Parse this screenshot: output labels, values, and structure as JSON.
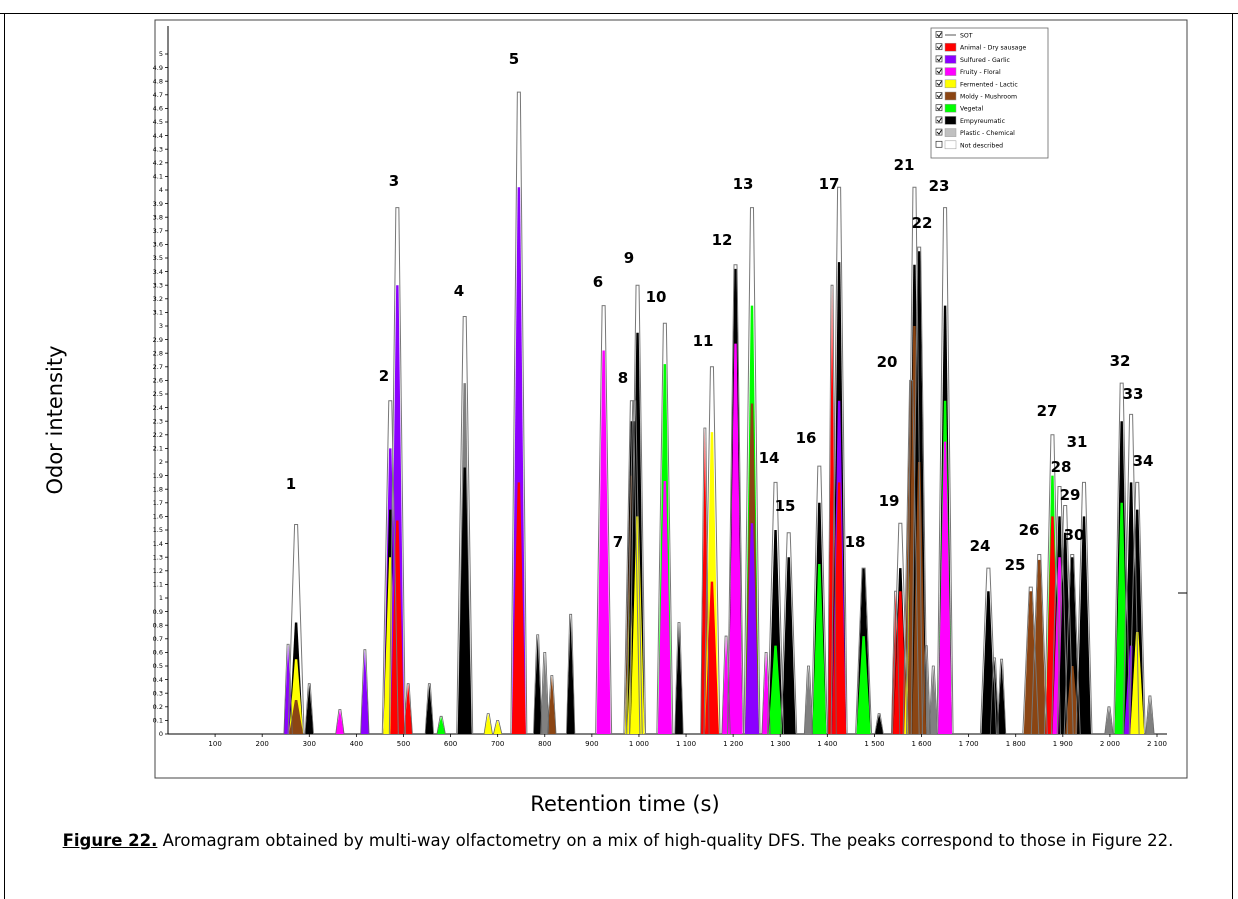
{
  "chart_data": {
    "type": "area",
    "xlabel": "Retention time (s)",
    "ylabel": "Odor intensity",
    "xlim": [
      0,
      2100
    ],
    "ylim": [
      0,
      5
    ],
    "x_ticks": [
      100,
      200,
      300,
      400,
      500,
      600,
      700,
      800,
      900,
      1000,
      1100,
      1200,
      1300,
      1400,
      1500,
      1600,
      1700,
      1800,
      1900,
      2000,
      2100
    ],
    "x_tick_labels": [
      "100",
      "200",
      "300",
      "400",
      "500",
      "600",
      "700",
      "800",
      "900",
      "1 000",
      "1 100",
      "1 200",
      "1 300",
      "1 400",
      "1 500",
      "1 600",
      "1 700",
      "1 800",
      "1 900",
      "2 000",
      "2 100"
    ],
    "y_ticks": [
      0,
      0.1,
      0.2,
      0.3,
      0.4,
      0.5,
      0.6,
      0.7,
      0.8,
      0.9,
      1,
      1.1,
      1.2,
      1.3,
      1.4,
      1.5,
      1.6,
      1.7,
      1.8,
      1.9,
      2,
      2.1,
      2.2,
      2.3,
      2.4,
      2.5,
      2.6,
      2.7,
      2.8,
      2.9,
      3,
      3.1,
      3.2,
      3.3,
      3.4,
      3.5,
      3.6,
      3.7,
      3.8,
      3.9,
      4,
      4.1,
      4.2,
      4.3,
      4.4,
      4.5,
      4.6,
      4.7,
      4.8,
      4.9,
      5
    ],
    "legend_position": "top-right",
    "legend": [
      {
        "name": "SOT",
        "color": "#555555",
        "style": "line"
      },
      {
        "name": "Animal - Dry sausage",
        "color": "#ff0000"
      },
      {
        "name": "Sulfured - Garlic",
        "color": "#8b00ff"
      },
      {
        "name": "Fruity - Floral",
        "color": "#ff00ff"
      },
      {
        "name": "Fermented - Lactic",
        "color": "#ffff00"
      },
      {
        "name": "Moldy - Mushroom",
        "color": "#8b4513"
      },
      {
        "name": "Vegetal",
        "color": "#00ff00"
      },
      {
        "name": "Empyreumatic",
        "color": "#000000"
      },
      {
        "name": "Plastic - Chemical",
        "color": "#c0c0c0"
      },
      {
        "name": "Not described",
        "color": "#ffffff"
      }
    ],
    "peaks": [
      {
        "label": "1",
        "x": 272,
        "sot": 1.54,
        "segments": [
          [
            "#8b4513",
            0.25
          ],
          [
            "#ffff00",
            0.55
          ],
          [
            "#000000",
            0.82
          ]
        ]
      },
      {
        "label": "2",
        "x": 472,
        "sot": 2.45,
        "segments": [
          [
            "#ffff00",
            1.3
          ],
          [
            "#000000",
            1.65
          ],
          [
            "#8b00ff",
            2.1
          ]
        ]
      },
      {
        "label": "3",
        "x": 487,
        "sot": 3.87,
        "segments": [
          [
            "#ff0000",
            1.57
          ],
          [
            "#8b00ff",
            3.3
          ]
        ]
      },
      {
        "label": "4",
        "x": 630,
        "sot": 3.07,
        "segments": [
          [
            "#000000",
            1.96
          ],
          [
            "#808080",
            2.58
          ]
        ]
      },
      {
        "label": "5",
        "x": 745,
        "sot": 4.72,
        "segments": [
          [
            "#ff0000",
            1.85
          ],
          [
            "#8b00ff",
            4.02
          ]
        ]
      },
      {
        "label": "6",
        "x": 925,
        "sot": 3.15,
        "segments": [
          [
            "#ff00ff",
            2.82
          ]
        ]
      },
      {
        "label": "7",
        "x": 985,
        "sot": 2.45,
        "segments": [
          [
            "#ffff00",
            1.2
          ],
          [
            "#8b4513",
            1.9
          ],
          [
            "#000000",
            2.3
          ]
        ]
      },
      {
        "label": "8",
        "x": 990,
        "sot": 2.45,
        "segments": [
          [
            "#ffff00",
            1.05
          ],
          [
            "#000000",
            2.3
          ]
        ]
      },
      {
        "label": "9",
        "x": 997,
        "sot": 3.3,
        "segments": [
          [
            "#ffff00",
            1.6
          ],
          [
            "#000000",
            2.95
          ]
        ]
      },
      {
        "label": "10",
        "x": 1055,
        "sot": 3.02,
        "segments": [
          [
            "#ff00ff",
            1.86
          ],
          [
            "#00ff00",
            2.72
          ]
        ]
      },
      {
        "label": "11",
        "x": 1155,
        "sot": 2.7,
        "segments": [
          [
            "#ff0000",
            1.12
          ],
          [
            "#ffff00",
            2.22
          ]
        ]
      },
      {
        "label": "12",
        "x": 1205,
        "sot": 3.45,
        "segments": [
          [
            "#ff00ff",
            2.87
          ],
          [
            "#000000",
            3.42
          ]
        ]
      },
      {
        "label": "13",
        "x": 1240,
        "sot": 3.87,
        "segments": [
          [
            "#8b00ff",
            1.55
          ],
          [
            "#8b4513",
            2.43
          ],
          [
            "#00ff00",
            3.15
          ]
        ]
      },
      {
        "label": "14",
        "x": 1290,
        "sot": 1.85,
        "segments": [
          [
            "#00ff00",
            0.65
          ],
          [
            "#000000",
            1.5
          ]
        ]
      },
      {
        "label": "15",
        "x": 1318,
        "sot": 1.48,
        "segments": [
          [
            "#000000",
            1.3
          ]
        ]
      },
      {
        "label": "16",
        "x": 1383,
        "sot": 1.97,
        "segments": [
          [
            "#00ff00",
            1.25
          ],
          [
            "#000000",
            1.7
          ]
        ]
      },
      {
        "label": "17",
        "x": 1425,
        "sot": 4.02,
        "segments": [
          [
            "#ff0000",
            1.85
          ],
          [
            "#8b00ff",
            2.45
          ],
          [
            "#000000",
            3.47
          ]
        ]
      },
      {
        "label": "18",
        "x": 1477,
        "sot": 1.22,
        "segments": [
          [
            "#00ff00",
            0.72
          ],
          [
            "#000000",
            1.22
          ]
        ]
      },
      {
        "label": "19",
        "x": 1555,
        "sot": 1.55,
        "segments": [
          [
            "#ff0000",
            1.05
          ],
          [
            "#000000",
            1.22
          ]
        ]
      },
      {
        "label": "20",
        "x": 1578,
        "sot": 2.6,
        "segments": [
          [
            "#ffff00",
            1.3
          ],
          [
            "#8b4513",
            2.6
          ]
        ]
      },
      {
        "label": "21",
        "x": 1585,
        "sot": 4.02,
        "segments": [
          [
            "#8b4513",
            3.0
          ],
          [
            "#000000",
            3.45
          ]
        ]
      },
      {
        "label": "22",
        "x": 1595,
        "sot": 3.58,
        "segments": [
          [
            "#8b4513",
            2.0
          ],
          [
            "#000000",
            3.55
          ]
        ]
      },
      {
        "label": "23",
        "x": 1650,
        "sot": 3.87,
        "segments": [
          [
            "#ff00ff",
            2.15
          ],
          [
            "#00ff00",
            2.45
          ],
          [
            "#000000",
            3.15
          ]
        ]
      },
      {
        "label": "24",
        "x": 1742,
        "sot": 1.22,
        "segments": [
          [
            "#000000",
            1.05
          ]
        ]
      },
      {
        "label": "25",
        "x": 1832,
        "sot": 1.08,
        "segments": [
          [
            "#8b4513",
            1.05
          ]
        ]
      },
      {
        "label": "26",
        "x": 1850,
        "sot": 1.32,
        "segments": [
          [
            "#8b4513",
            1.28
          ]
        ]
      },
      {
        "label": "27",
        "x": 1878,
        "sot": 2.2,
        "segments": [
          [
            "#ff0000",
            1.6
          ],
          [
            "#00ff00",
            1.9
          ]
        ]
      },
      {
        "label": "28",
        "x": 1893,
        "sot": 1.82,
        "segments": [
          [
            "#ff00ff",
            1.3
          ],
          [
            "#000000",
            1.6
          ]
        ]
      },
      {
        "label": "29",
        "x": 1905,
        "sot": 1.68,
        "segments": [
          [
            "#000000",
            1.48
          ]
        ]
      },
      {
        "label": "30",
        "x": 1920,
        "sot": 1.32,
        "segments": [
          [
            "#8b4513",
            0.5
          ],
          [
            "#000000",
            1.3
          ]
        ]
      },
      {
        "label": "31",
        "x": 1945,
        "sot": 1.85,
        "segments": [
          [
            "#000000",
            1.6
          ]
        ]
      },
      {
        "label": "32",
        "x": 2025,
        "sot": 2.58,
        "segments": [
          [
            "#00ff00",
            1.7
          ],
          [
            "#000000",
            2.3
          ]
        ]
      },
      {
        "label": "33",
        "x": 2045,
        "sot": 2.35,
        "segments": [
          [
            "#8b00ff",
            0.65
          ],
          [
            "#000000",
            1.85
          ]
        ]
      },
      {
        "label": "34",
        "x": 2058,
        "sot": 1.85,
        "segments": [
          [
            "#ffff00",
            0.75
          ],
          [
            "#000000",
            1.65
          ]
        ]
      }
    ],
    "minor_peaks": [
      {
        "x": 255,
        "sot": 0.66,
        "color": "#8b00ff"
      },
      {
        "x": 300,
        "sot": 0.37,
        "color": "#000000"
      },
      {
        "x": 365,
        "sot": 0.18,
        "color": "#ff00ff"
      },
      {
        "x": 418,
        "sot": 0.62,
        "color": "#8b00ff"
      },
      {
        "x": 510,
        "sot": 0.37,
        "color": "#ff0000"
      },
      {
        "x": 555,
        "sot": 0.37,
        "color": "#000000"
      },
      {
        "x": 580,
        "sot": 0.13,
        "color": "#00ff00"
      },
      {
        "x": 680,
        "sot": 0.15,
        "color": "#ffff00"
      },
      {
        "x": 700,
        "sot": 0.1,
        "color": "#ffff00"
      },
      {
        "x": 785,
        "sot": 0.73,
        "color": "#000000"
      },
      {
        "x": 800,
        "sot": 0.6,
        "color": "#808080"
      },
      {
        "x": 815,
        "sot": 0.43,
        "color": "#8b4513"
      },
      {
        "x": 855,
        "sot": 0.88,
        "color": "#000000"
      },
      {
        "x": 1085,
        "sot": 0.82,
        "color": "#000000"
      },
      {
        "x": 1140,
        "sot": 2.25,
        "color": "#ff0000"
      },
      {
        "x": 1185,
        "sot": 0.72,
        "color": "#ff00ff"
      },
      {
        "x": 1270,
        "sot": 0.6,
        "color": "#ff00ff"
      },
      {
        "x": 1360,
        "sot": 0.5,
        "color": "#808080"
      },
      {
        "x": 1410,
        "sot": 3.3,
        "color": "#ff0000"
      },
      {
        "x": 1510,
        "sot": 0.15,
        "color": "#000000"
      },
      {
        "x": 1545,
        "sot": 1.05,
        "color": "#ff0000"
      },
      {
        "x": 1610,
        "sot": 0.65,
        "color": "#808080"
      },
      {
        "x": 1625,
        "sot": 0.5,
        "color": "#808080"
      },
      {
        "x": 1755,
        "sot": 0.56,
        "color": "#000000"
      },
      {
        "x": 1770,
        "sot": 0.55,
        "color": "#000000"
      },
      {
        "x": 1998,
        "sot": 0.2,
        "color": "#808080"
      },
      {
        "x": 2085,
        "sot": 0.28,
        "color": "#808080"
      }
    ]
  },
  "axis_titles": {
    "y": "Odor intensity",
    "x": "Retention time (s)"
  },
  "caption": {
    "figure_label": "Figure 22.",
    "text": " Aromagram obtained by multi-way olfactometry on a mix of high-quality DFS. The peaks correspond to those in Figure 22."
  }
}
